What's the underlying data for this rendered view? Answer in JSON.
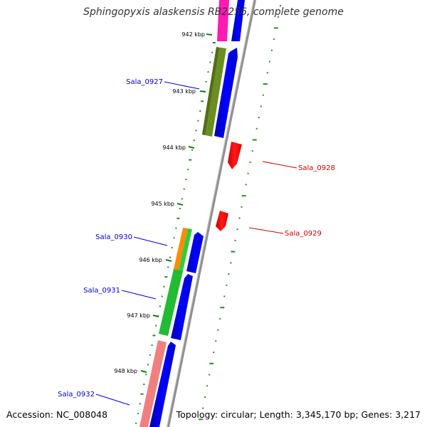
{
  "title": "Sphingopyxis alaskensis RB2256, complete genome",
  "footer": {
    "accession": "Accession: NC_008048",
    "summary": "Topology: circular; Length: 3,345,170 bp; Genes: 3,217"
  },
  "ticks": [
    "942 kbp",
    "943 kbp",
    "944 kbp",
    "945 kbp",
    "946 kbp",
    "947 kbp",
    "948 kbp"
  ],
  "gene_labels": [
    {
      "name": "Sala_0927",
      "strand": "forward",
      "color": "#0000cc"
    },
    {
      "name": "Sala_0928",
      "strand": "reverse",
      "color": "#cc0000"
    },
    {
      "name": "Sala_0929",
      "strand": "reverse",
      "color": "#cc0000"
    },
    {
      "name": "Sala_0930",
      "strand": "forward",
      "color": "#0000cc"
    },
    {
      "name": "Sala_0931",
      "strand": "forward",
      "color": "#0000cc"
    },
    {
      "name": "Sala_0932",
      "strand": "forward",
      "color": "#0000cc"
    }
  ],
  "colors": {
    "backbone": "#8c8c8c",
    "forward_cds": "#0000ff",
    "reverse_cds": "#ff0000",
    "tick": "#1a7a1a",
    "gc_skew": "#2a8a2a"
  }
}
